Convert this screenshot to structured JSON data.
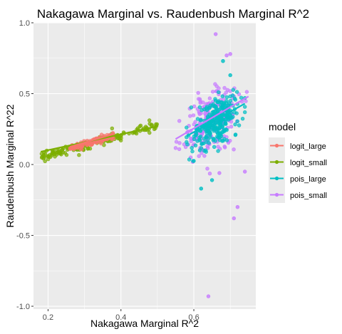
{
  "chart_data": {
    "type": "scatter",
    "title": "Nakagawa Marginal vs. Raudenbush Marginal R^2",
    "xlabel": "Nakagawa Marginal R^2",
    "ylabel": "Raudenbush Marginal R^22",
    "xlim": [
      0.16,
      0.77
    ],
    "ylim": [
      -1.02,
      1.0
    ],
    "x_ticks": [
      0.2,
      0.4,
      0.6
    ],
    "x_tick_labels": [
      "0.2",
      "0.4",
      "0.6"
    ],
    "y_ticks": [
      -1.0,
      -0.5,
      0.0,
      0.5,
      1.0
    ],
    "y_tick_labels": [
      "-1.0",
      "-0.5",
      "0.0",
      "0.5",
      "1.0"
    ],
    "grid": true,
    "background": "#EBEBEB",
    "legend": {
      "title": "model",
      "position": "right"
    },
    "series": [
      {
        "name": "logit_large",
        "color": "#F8766D",
        "cloud": {
          "x_range": [
            0.26,
            0.38
          ],
          "center_y": 0.155,
          "slope": 0.75,
          "spread": 0.012
        },
        "trend": {
          "x": [
            0.26,
            0.38
          ],
          "y": [
            0.125,
            0.215
          ]
        }
      },
      {
        "name": "logit_small",
        "color": "#7CAE00",
        "cloud": {
          "x_range": [
            0.18,
            0.5
          ],
          "center_y": 0.165,
          "slope": 0.75,
          "spread": 0.018
        },
        "trend": {
          "x": [
            0.18,
            0.5
          ],
          "y": [
            0.09,
            0.27
          ]
        }
      },
      {
        "name": "pois_large",
        "color": "#00BFC4",
        "cloud": {
          "x_range": [
            0.58,
            0.74
          ],
          "center_y": 0.3,
          "slope": 1.4,
          "spread": 0.08
        },
        "trend": {
          "x": [
            0.58,
            0.74
          ],
          "y": [
            0.2,
            0.43
          ]
        },
        "outliers": [
          {
            "x": 0.62,
            "y": -0.17
          },
          {
            "x": 0.65,
            "y": -0.11
          },
          {
            "x": 0.68,
            "y": 0.73
          },
          {
            "x": 0.7,
            "y": 0.63
          }
        ]
      },
      {
        "name": "pois_small",
        "color": "#C77CFF",
        "cloud": {
          "x_range": [
            0.55,
            0.75
          ],
          "center_y": 0.3,
          "slope": 1.4,
          "spread": 0.11
        },
        "trend": {
          "x": [
            0.55,
            0.75
          ],
          "y": [
            0.18,
            0.48
          ]
        },
        "outliers": [
          {
            "x": 0.64,
            "y": -0.93
          },
          {
            "x": 0.71,
            "y": -0.38
          },
          {
            "x": 0.72,
            "y": -0.3
          },
          {
            "x": 0.66,
            "y": 0.92
          },
          {
            "x": 0.69,
            "y": 0.77
          },
          {
            "x": 0.7,
            "y": 0.78
          },
          {
            "x": 0.67,
            "y": -0.06
          },
          {
            "x": 0.74,
            "y": -0.05
          }
        ]
      }
    ]
  }
}
